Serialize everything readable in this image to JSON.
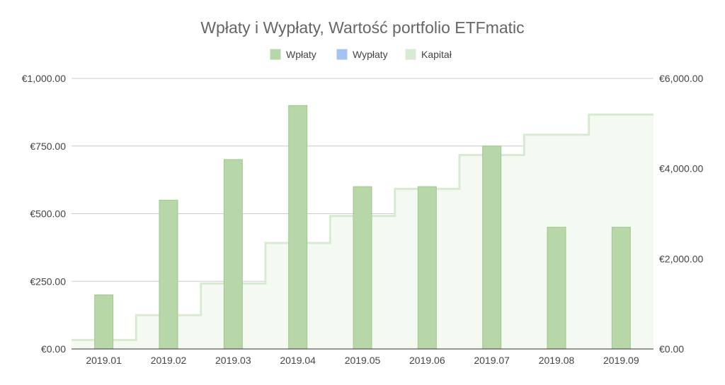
{
  "chart_data": {
    "type": "bar",
    "title": "Wpłaty i Wypłaty, Wartość portfolio  ETFmatic",
    "categories": [
      "2019.01",
      "2019.02",
      "2019.03",
      "2019.04",
      "2019.05",
      "2019.06",
      "2019.07",
      "2019.08",
      "2019.09"
    ],
    "series": [
      {
        "name": "Wpłaty",
        "type": "bar",
        "axis": "left",
        "color": "#b7d7a8",
        "values": [
          200,
          550,
          700,
          900,
          600,
          600,
          750,
          450,
          450
        ]
      },
      {
        "name": "Wypłaty",
        "type": "bar",
        "axis": "left",
        "color": "#a4c2f4",
        "values": [
          0,
          0,
          0,
          0,
          0,
          0,
          0,
          0,
          0
        ]
      },
      {
        "name": "Kapitał",
        "type": "stepped-area",
        "axis": "right",
        "color": "#d9ead3",
        "values": [
          200,
          750,
          1450,
          2350,
          2950,
          3550,
          4300,
          4750,
          5200
        ]
      }
    ],
    "y_left": {
      "range": [
        0,
        1000
      ],
      "ticks": [
        0,
        250,
        500,
        750,
        1000
      ],
      "tick_labels": [
        "€0.00",
        "€250.00",
        "€500.00",
        "€750.00",
        "€1,000.00"
      ]
    },
    "y_right": {
      "range": [
        0,
        6000
      ],
      "ticks": [
        0,
        2000,
        4000,
        6000
      ],
      "tick_labels": [
        "€0.00",
        "€2,000.00",
        "€4,000.00",
        "€6,000.00"
      ]
    },
    "grid": true,
    "legend_position": "top-center"
  }
}
